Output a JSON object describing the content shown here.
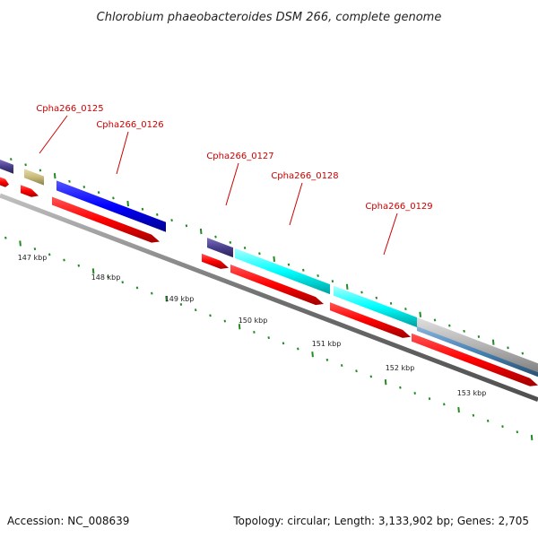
{
  "title": "Chlorobium phaeobacteroides DSM 266, complete genome",
  "accession": "Accession: NC_008639",
  "summary": "Topology: circular; Length: 3,133,902 bp; Genes: 2,705",
  "gene_labels": [
    "Cpha266_0125",
    "Cpha266_0126",
    "Cpha266_0127",
    "Cpha266_0128",
    "Cpha266_0129"
  ],
  "kbp_labels": [
    "147 kbp",
    "148 kbp",
    "149 kbp",
    "150 kbp",
    "151 kbp",
    "152 kbp",
    "153 kbp"
  ],
  "colors": {
    "label": "#cc0000",
    "backbone": "#808080",
    "tick": "#228b22",
    "cds": "#ff0000",
    "gene_navy": "#4a3f8c",
    "gene_khaki": "#c8bb7a",
    "gene_blue": "#0000ff",
    "gene_cyan": "#00ffff",
    "gene_gray": "#b4b4b4",
    "gene_steel": "#4682b4"
  }
}
